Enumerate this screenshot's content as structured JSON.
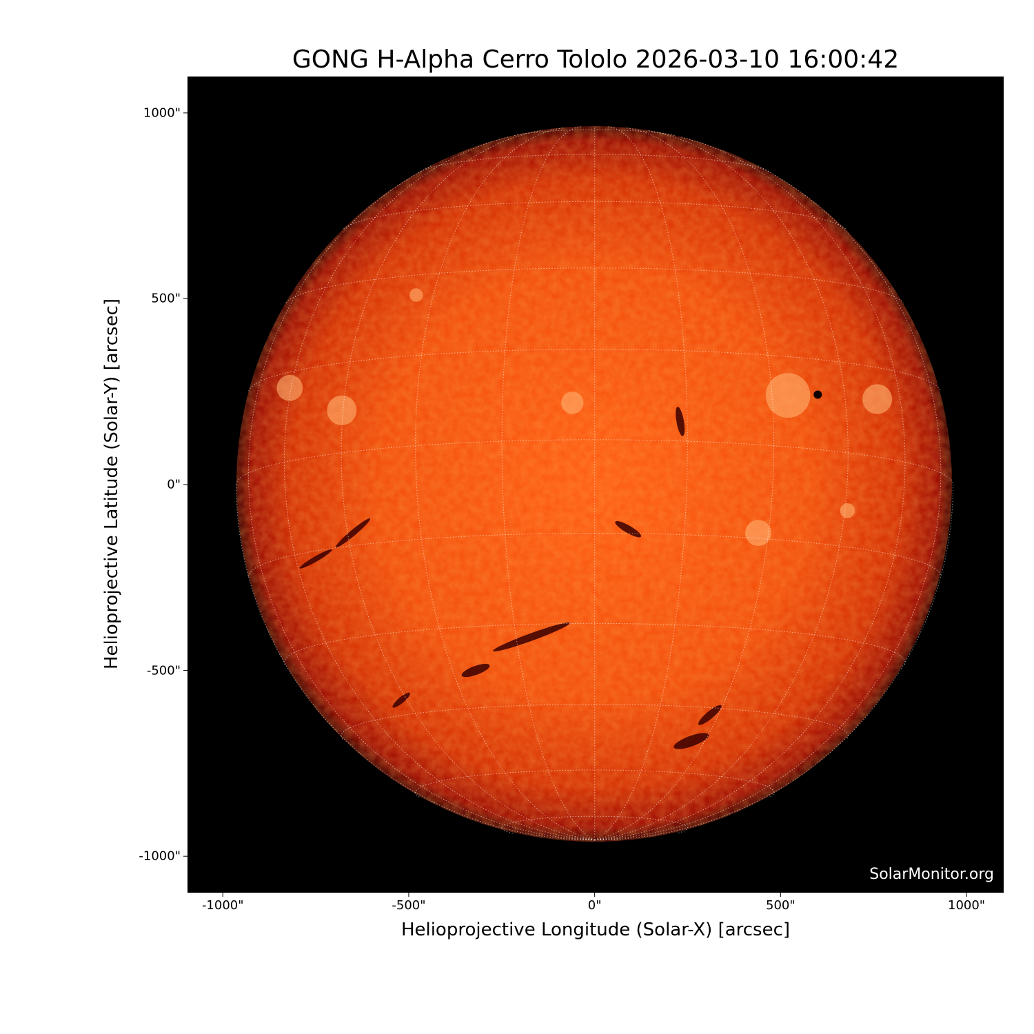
{
  "chart_data": {
    "type": "heatmap",
    "title": "GONG H-Alpha Cerro Tololo 2026-03-10 16:00:42",
    "xlabel": "Helioprojective Longitude (Solar-X) [arcsec]",
    "ylabel": "Helioprojective Latitude (Solar-Y) [arcsec]",
    "xlim": [
      -1095,
      1100
    ],
    "ylim": [
      -1098,
      1098
    ],
    "xticks": [
      -1000,
      -500,
      0,
      500,
      1000
    ],
    "yticks": [
      -1000,
      -500,
      0,
      500,
      1000
    ],
    "xtick_labels": [
      "-1000\"",
      "-500\"",
      "0\"",
      "500\"",
      "1000\""
    ],
    "ytick_labels": [
      "-1000\"",
      "-500\"",
      "0\"",
      "500\"",
      "1000\""
    ],
    "solar_radius_arcsec": 964,
    "grid": "heliographic, 15 degree spacing, dotted white",
    "colormap": [
      "#000000",
      "#8b0000",
      "#e03000",
      "#ff6010",
      "#ffffff"
    ],
    "background_color": "#000000",
    "watermark": "SolarMonitor.org"
  }
}
